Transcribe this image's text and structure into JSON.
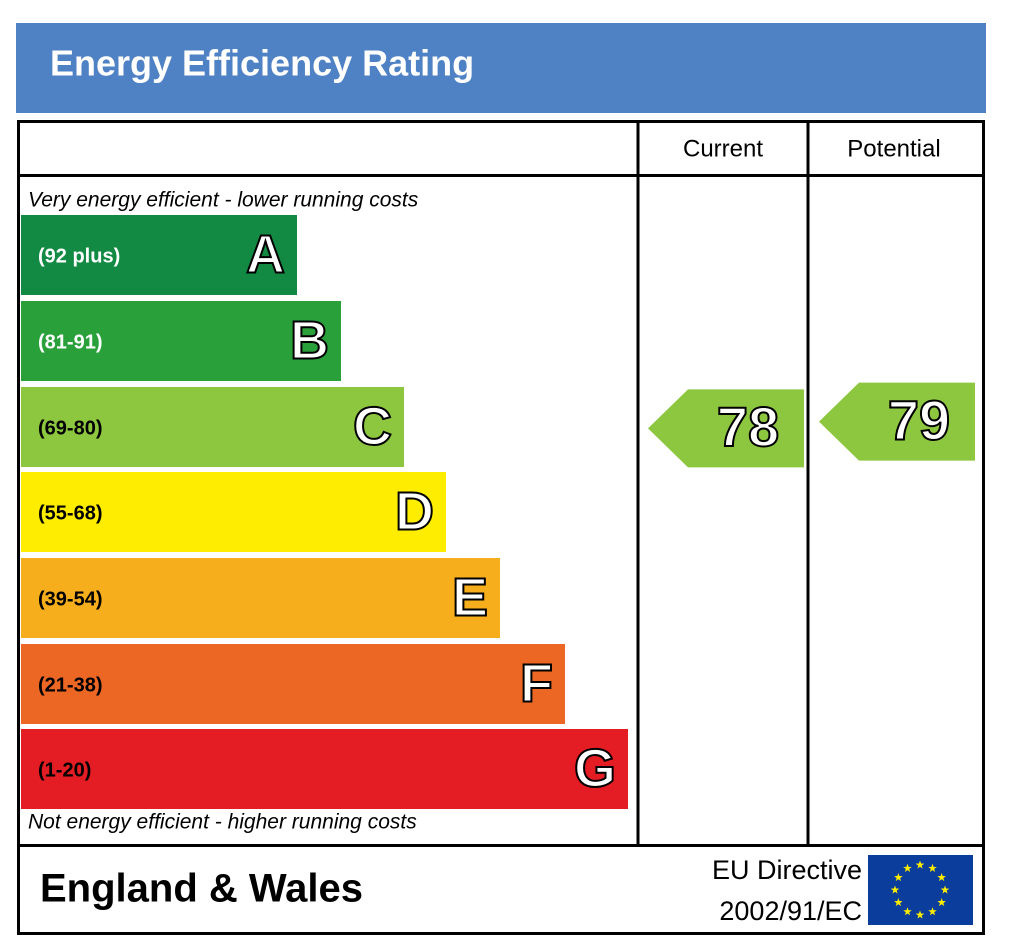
{
  "title": "Energy Efficiency Rating",
  "columns": [
    "Current",
    "Potential"
  ],
  "top_note": "Very energy efficient - lower running costs",
  "bottom_note": "Not energy efficient - higher running costs",
  "bands": [
    {
      "range": "(92 plus)",
      "letter": "A",
      "color": "#138a43"
    },
    {
      "range": "(81-91)",
      "letter": "B",
      "color": "#2aa03b"
    },
    {
      "range": "(69-80)",
      "letter": "C",
      "color": "#8dc63f"
    },
    {
      "range": "(55-68)",
      "letter": "D",
      "color": "#ffed00"
    },
    {
      "range": "(39-54)",
      "letter": "E",
      "color": "#f7ae1d"
    },
    {
      "range": "(21-38)",
      "letter": "F",
      "color": "#ec6724"
    },
    {
      "range": "(1-20)",
      "letter": "G",
      "color": "#e31d23"
    }
  ],
  "current": 78,
  "potential": 79,
  "footer": {
    "region": "England & Wales",
    "directive": "EU Directive",
    "code": "2002/91/EC"
  }
}
